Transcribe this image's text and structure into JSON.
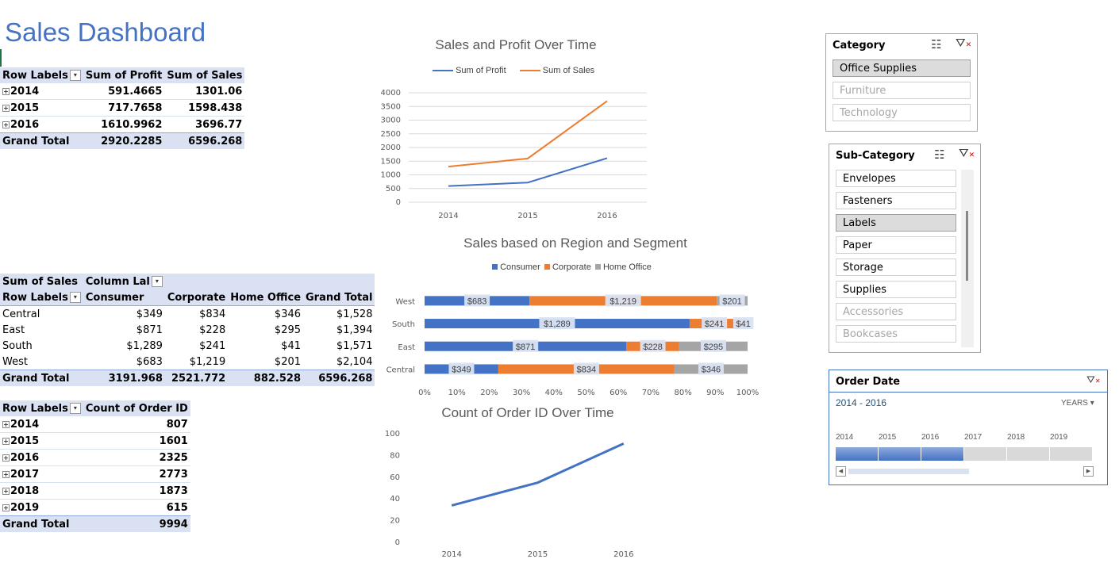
{
  "dashboard_title": "Sales Dashboard",
  "pivot1": {
    "headers": [
      "Row Labels",
      "Sum of Profit",
      "Sum of Sales"
    ],
    "rows": [
      {
        "label": "2014",
        "profit": "591.4665",
        "sales": "1301.06"
      },
      {
        "label": "2015",
        "profit": "717.7658",
        "sales": "1598.438"
      },
      {
        "label": "2016",
        "profit": "1610.9962",
        "sales": "3696.77"
      }
    ],
    "total": {
      "label": "Grand Total",
      "profit": "2920.2285",
      "sales": "6596.268"
    }
  },
  "pivot2": {
    "corner": "Sum of Sales",
    "column_labels": "Column Lal",
    "headers": [
      "Row Labels",
      "Consumer",
      "Corporate",
      "Home Office",
      "Grand Total"
    ],
    "rows": [
      {
        "label": "Central",
        "c": "$349",
        "co": "$834",
        "h": "$346",
        "g": "$1,528"
      },
      {
        "label": "East",
        "c": "$871",
        "co": "$228",
        "h": "$295",
        "g": "$1,394"
      },
      {
        "label": "South",
        "c": "$1,289",
        "co": "$241",
        "h": "$41",
        "g": "$1,571"
      },
      {
        "label": "West",
        "c": "$683",
        "co": "$1,219",
        "h": "$201",
        "g": "$2,104"
      }
    ],
    "total": {
      "label": "Grand Total",
      "c": "3191.968",
      "co": "2521.772",
      "h": "882.528",
      "g": "6596.268"
    }
  },
  "pivot3": {
    "headers": [
      "Row Labels",
      "Count of Order ID"
    ],
    "rows": [
      {
        "label": "2014",
        "v": "807"
      },
      {
        "label": "2015",
        "v": "1601"
      },
      {
        "label": "2016",
        "v": "2325"
      },
      {
        "label": "2017",
        "v": "2773"
      },
      {
        "label": "2018",
        "v": "1873"
      },
      {
        "label": "2019",
        "v": "615"
      }
    ],
    "total": {
      "label": "Grand Total",
      "v": "9994"
    }
  },
  "charts": {
    "line1": {
      "title": "Sales and Profit Over Time",
      "legend": [
        "Sum of Profit",
        "Sum of Sales"
      ]
    },
    "bar": {
      "title": "Sales based on Region and Segment",
      "legend": [
        "Consumer",
        "Corporate",
        "Home Office"
      ]
    },
    "line2": {
      "title": "Count of Order ID Over Time"
    }
  },
  "chart_data": [
    {
      "type": "line",
      "title": "Sales and Profit Over Time",
      "categories": [
        "2014",
        "2015",
        "2016"
      ],
      "series": [
        {
          "name": "Sum of Profit",
          "values": [
            591.4665,
            717.7658,
            1610.9962
          ],
          "color": "#4472c4"
        },
        {
          "name": "Sum of Sales",
          "values": [
            1301.06,
            1598.438,
            3696.77
          ],
          "color": "#ed7d31"
        }
      ],
      "yticks": [
        "0",
        "500",
        "1000",
        "1500",
        "2000",
        "2500",
        "3000",
        "3500",
        "4000"
      ],
      "ylim": [
        0,
        4000
      ],
      "grid": true,
      "legend_position": "top"
    },
    {
      "type": "bar",
      "title": "Sales based on Region and Segment",
      "stacked_percent": true,
      "categories": [
        "West",
        "South",
        "East",
        "Central"
      ],
      "series": [
        {
          "name": "Consumer",
          "values": [
            683,
            1289,
            871,
            349
          ],
          "labels": [
            "$683",
            "$1,289",
            "$871",
            "$349"
          ],
          "color": "#4472c4"
        },
        {
          "name": "Corporate",
          "values": [
            1219,
            241,
            228,
            834
          ],
          "labels": [
            "$1,219",
            "$241",
            "$228",
            "$834"
          ],
          "color": "#ed7d31"
        },
        {
          "name": "Home Office",
          "values": [
            201,
            41,
            295,
            346
          ],
          "labels": [
            "$201",
            "$41",
            "$295",
            "$346"
          ],
          "color": "#a5a5a5"
        }
      ],
      "xticks": [
        "0%",
        "10%",
        "20%",
        "30%",
        "40%",
        "50%",
        "60%",
        "70%",
        "80%",
        "90%",
        "100%"
      ],
      "legend_position": "top"
    },
    {
      "type": "line",
      "title": "Count of Order ID Over Time",
      "categories": [
        "2014",
        "2015",
        "2016"
      ],
      "series": [
        {
          "name": "",
          "values": [
            34,
            55,
            91
          ],
          "color": "#4472c4"
        }
      ],
      "yticks": [
        "0",
        "20",
        "40",
        "60",
        "80",
        "100"
      ],
      "ylim": [
        0,
        100
      ],
      "grid": false
    }
  ],
  "slicers": {
    "category": {
      "title": "Category",
      "items": [
        {
          "label": "Office Supplies",
          "state": "selected"
        },
        {
          "label": "Furniture",
          "state": "dim"
        },
        {
          "label": "Technology",
          "state": "dim"
        }
      ]
    },
    "subcategory": {
      "title": "Sub-Category",
      "items": [
        {
          "label": "Envelopes",
          "state": "normal"
        },
        {
          "label": "Fasteners",
          "state": "normal"
        },
        {
          "label": "Labels",
          "state": "selected"
        },
        {
          "label": "Paper",
          "state": "normal"
        },
        {
          "label": "Storage",
          "state": "normal"
        },
        {
          "label": "Supplies",
          "state": "normal"
        },
        {
          "label": "Accessories",
          "state": "dim"
        },
        {
          "label": "Bookcases",
          "state": "dim"
        }
      ]
    },
    "timeline": {
      "title": "Order Date",
      "range": "2014 - 2016",
      "level": "YEARS",
      "years": [
        "2014",
        "2015",
        "2016",
        "2017",
        "2018",
        "2019"
      ],
      "selected_count": 3
    }
  }
}
